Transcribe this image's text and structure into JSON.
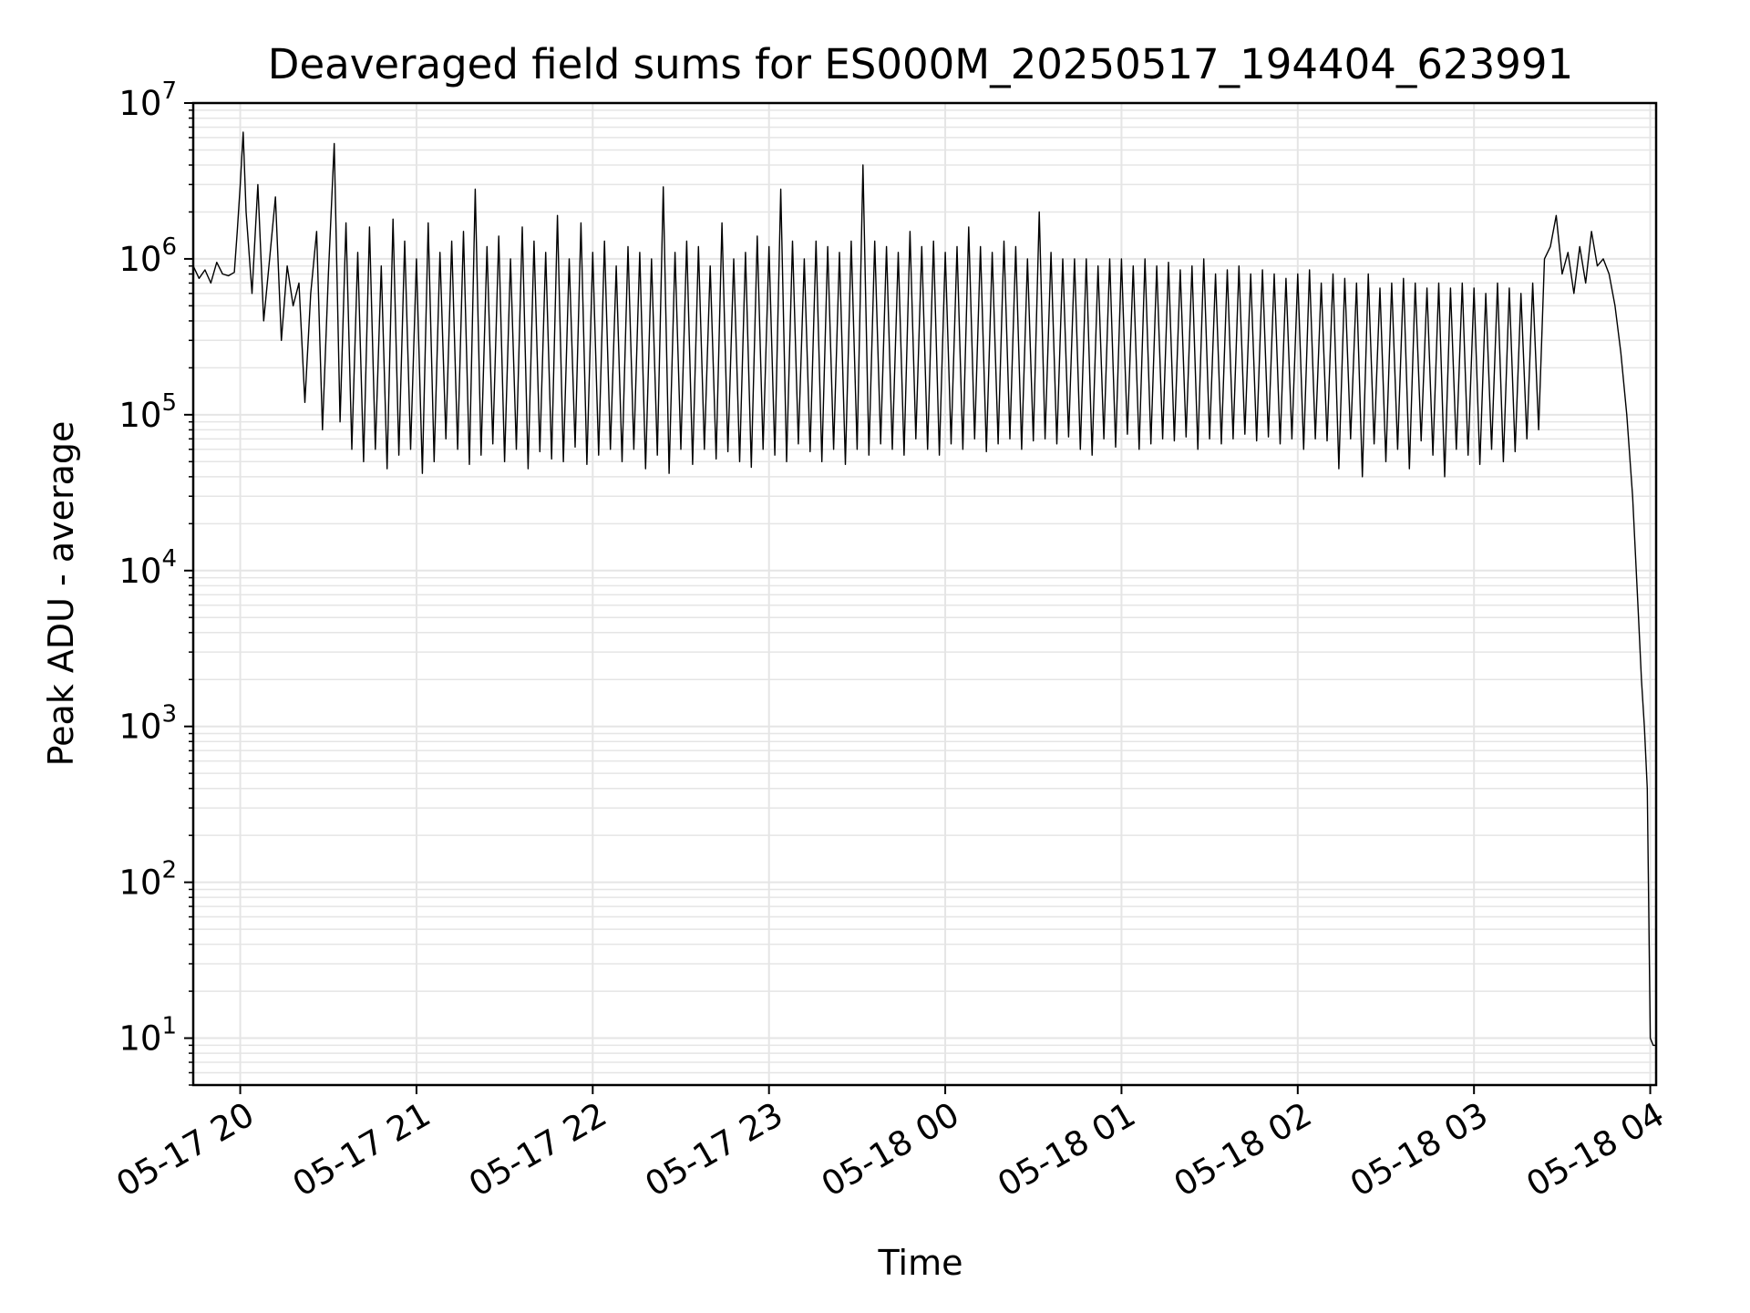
{
  "chart_data": {
    "type": "line",
    "title": "Deaveraged field sums for ES000M_20250517_194404_623991",
    "xlabel": "Time",
    "ylabel": "Peak ADU - average",
    "yscale": "log",
    "ylim": [
      5,
      10000000
    ],
    "xlim": [
      "2025-05-17 19:44",
      "2025-05-18 04:02"
    ],
    "grid": true,
    "line_color": "#000000",
    "grid_color": "#e5e5e5",
    "x_ticks": [
      {
        "value": "2025-05-17 20:00",
        "label": "05-17 20"
      },
      {
        "value": "2025-05-17 21:00",
        "label": "05-17 21"
      },
      {
        "value": "2025-05-17 22:00",
        "label": "05-17 22"
      },
      {
        "value": "2025-05-17 23:00",
        "label": "05-17 23"
      },
      {
        "value": "2025-05-18 00:00",
        "label": "05-18 00"
      },
      {
        "value": "2025-05-18 01:00",
        "label": "05-18 01"
      },
      {
        "value": "2025-05-18 02:00",
        "label": "05-18 02"
      },
      {
        "value": "2025-05-18 03:00",
        "label": "05-18 03"
      },
      {
        "value": "2025-05-18 04:00",
        "label": "05-18 04"
      }
    ],
    "y_ticks": [
      {
        "value": 10,
        "base": "10",
        "exp": "1"
      },
      {
        "value": 100,
        "base": "10",
        "exp": "2"
      },
      {
        "value": 1000,
        "base": "10",
        "exp": "3"
      },
      {
        "value": 10000,
        "base": "10",
        "exp": "4"
      },
      {
        "value": 100000,
        "base": "10",
        "exp": "5"
      },
      {
        "value": 1000000,
        "base": "10",
        "exp": "6"
      },
      {
        "value": 10000000,
        "base": "10",
        "exp": "7"
      }
    ],
    "series": [
      {
        "x": [
          "2025-05-17 19:44",
          "2025-05-17 19:46",
          "2025-05-17 19:48",
          "2025-05-17 19:50",
          "2025-05-17 19:52",
          "2025-05-17 19:54",
          "2025-05-17 19:56",
          "2025-05-17 19:58",
          "2025-05-17 19:59",
          "2025-05-17 20:00",
          "2025-05-17 20:01",
          "2025-05-17 20:02",
          "2025-05-17 20:04",
          "2025-05-17 20:06",
          "2025-05-17 20:08",
          "2025-05-17 20:10",
          "2025-05-17 20:12",
          "2025-05-17 20:14",
          "2025-05-17 20:16",
          "2025-05-17 20:18",
          "2025-05-17 20:20",
          "2025-05-17 20:22",
          "2025-05-17 20:24",
          "2025-05-17 20:26",
          "2025-05-17 20:28",
          "2025-05-17 20:30",
          "2025-05-17 20:32",
          "2025-05-17 20:34",
          "2025-05-17 20:36",
          "2025-05-17 20:38",
          "2025-05-17 20:40",
          "2025-05-17 20:42",
          "2025-05-17 20:44",
          "2025-05-17 20:46",
          "2025-05-17 20:48",
          "2025-05-17 20:50",
          "2025-05-17 20:52",
          "2025-05-17 20:54",
          "2025-05-17 20:56",
          "2025-05-17 20:58",
          "2025-05-17 21:00",
          "2025-05-17 21:02",
          "2025-05-17 21:04",
          "2025-05-17 21:06",
          "2025-05-17 21:08",
          "2025-05-17 21:10",
          "2025-05-17 21:12",
          "2025-05-17 21:14",
          "2025-05-17 21:16",
          "2025-05-17 21:18",
          "2025-05-17 21:20",
          "2025-05-17 21:22",
          "2025-05-17 21:24",
          "2025-05-17 21:26",
          "2025-05-17 21:28",
          "2025-05-17 21:30",
          "2025-05-17 21:32",
          "2025-05-17 21:34",
          "2025-05-17 21:36",
          "2025-05-17 21:38",
          "2025-05-17 21:40",
          "2025-05-17 21:42",
          "2025-05-17 21:44",
          "2025-05-17 21:46",
          "2025-05-17 21:48",
          "2025-05-17 21:50",
          "2025-05-17 21:52",
          "2025-05-17 21:54",
          "2025-05-17 21:56",
          "2025-05-17 21:58",
          "2025-05-17 22:00",
          "2025-05-17 22:02",
          "2025-05-17 22:04",
          "2025-05-17 22:06",
          "2025-05-17 22:08",
          "2025-05-17 22:10",
          "2025-05-17 22:12",
          "2025-05-17 22:14",
          "2025-05-17 22:16",
          "2025-05-17 22:18",
          "2025-05-17 22:20",
          "2025-05-17 22:22",
          "2025-05-17 22:24",
          "2025-05-17 22:26",
          "2025-05-17 22:28",
          "2025-05-17 22:30",
          "2025-05-17 22:32",
          "2025-05-17 22:34",
          "2025-05-17 22:36",
          "2025-05-17 22:38",
          "2025-05-17 22:40",
          "2025-05-17 22:42",
          "2025-05-17 22:44",
          "2025-05-17 22:46",
          "2025-05-17 22:48",
          "2025-05-17 22:50",
          "2025-05-17 22:52",
          "2025-05-17 22:54",
          "2025-05-17 22:56",
          "2025-05-17 22:58",
          "2025-05-17 23:00",
          "2025-05-17 23:02",
          "2025-05-17 23:04",
          "2025-05-17 23:06",
          "2025-05-17 23:08",
          "2025-05-17 23:10",
          "2025-05-17 23:12",
          "2025-05-17 23:14",
          "2025-05-17 23:16",
          "2025-05-17 23:18",
          "2025-05-17 23:20",
          "2025-05-17 23:22",
          "2025-05-17 23:24",
          "2025-05-17 23:26",
          "2025-05-17 23:28",
          "2025-05-17 23:30",
          "2025-05-17 23:32",
          "2025-05-17 23:34",
          "2025-05-17 23:36",
          "2025-05-17 23:38",
          "2025-05-17 23:40",
          "2025-05-17 23:42",
          "2025-05-17 23:44",
          "2025-05-17 23:46",
          "2025-05-17 23:48",
          "2025-05-17 23:50",
          "2025-05-17 23:52",
          "2025-05-17 23:54",
          "2025-05-17 23:56",
          "2025-05-17 23:58",
          "2025-05-18 00:00",
          "2025-05-18 00:02",
          "2025-05-18 00:04",
          "2025-05-18 00:06",
          "2025-05-18 00:08",
          "2025-05-18 00:10",
          "2025-05-18 00:12",
          "2025-05-18 00:14",
          "2025-05-18 00:16",
          "2025-05-18 00:18",
          "2025-05-18 00:20",
          "2025-05-18 00:22",
          "2025-05-18 00:24",
          "2025-05-18 00:26",
          "2025-05-18 00:28",
          "2025-05-18 00:30",
          "2025-05-18 00:32",
          "2025-05-18 00:34",
          "2025-05-18 00:36",
          "2025-05-18 00:38",
          "2025-05-18 00:40",
          "2025-05-18 00:42",
          "2025-05-18 00:44",
          "2025-05-18 00:46",
          "2025-05-18 00:48",
          "2025-05-18 00:50",
          "2025-05-18 00:52",
          "2025-05-18 00:54",
          "2025-05-18 00:56",
          "2025-05-18 00:58",
          "2025-05-18 01:00",
          "2025-05-18 01:02",
          "2025-05-18 01:04",
          "2025-05-18 01:06",
          "2025-05-18 01:08",
          "2025-05-18 01:10",
          "2025-05-18 01:12",
          "2025-05-18 01:14",
          "2025-05-18 01:16",
          "2025-05-18 01:18",
          "2025-05-18 01:20",
          "2025-05-18 01:22",
          "2025-05-18 01:24",
          "2025-05-18 01:26",
          "2025-05-18 01:28",
          "2025-05-18 01:30",
          "2025-05-18 01:32",
          "2025-05-18 01:34",
          "2025-05-18 01:36",
          "2025-05-18 01:38",
          "2025-05-18 01:40",
          "2025-05-18 01:42",
          "2025-05-18 01:44",
          "2025-05-18 01:46",
          "2025-05-18 01:48",
          "2025-05-18 01:50",
          "2025-05-18 01:52",
          "2025-05-18 01:54",
          "2025-05-18 01:56",
          "2025-05-18 01:58",
          "2025-05-18 02:00",
          "2025-05-18 02:02",
          "2025-05-18 02:04",
          "2025-05-18 02:06",
          "2025-05-18 02:08",
          "2025-05-18 02:10",
          "2025-05-18 02:12",
          "2025-05-18 02:14",
          "2025-05-18 02:16",
          "2025-05-18 02:18",
          "2025-05-18 02:20",
          "2025-05-18 02:22",
          "2025-05-18 02:24",
          "2025-05-18 02:26",
          "2025-05-18 02:28",
          "2025-05-18 02:30",
          "2025-05-18 02:32",
          "2025-05-18 02:34",
          "2025-05-18 02:36",
          "2025-05-18 02:38",
          "2025-05-18 02:40",
          "2025-05-18 02:42",
          "2025-05-18 02:44",
          "2025-05-18 02:46",
          "2025-05-18 02:48",
          "2025-05-18 02:50",
          "2025-05-18 02:52",
          "2025-05-18 02:54",
          "2025-05-18 02:56",
          "2025-05-18 02:58",
          "2025-05-18 03:00",
          "2025-05-18 03:02",
          "2025-05-18 03:04",
          "2025-05-18 03:06",
          "2025-05-18 03:08",
          "2025-05-18 03:10",
          "2025-05-18 03:12",
          "2025-05-18 03:14",
          "2025-05-18 03:16",
          "2025-05-18 03:18",
          "2025-05-18 03:20",
          "2025-05-18 03:22",
          "2025-05-18 03:24",
          "2025-05-18 03:26",
          "2025-05-18 03:28",
          "2025-05-18 03:30",
          "2025-05-18 03:32",
          "2025-05-18 03:34",
          "2025-05-18 03:36",
          "2025-05-18 03:38",
          "2025-05-18 03:40",
          "2025-05-18 03:42",
          "2025-05-18 03:44",
          "2025-05-18 03:46",
          "2025-05-18 03:48",
          "2025-05-18 03:50",
          "2025-05-18 03:52",
          "2025-05-18 03:54",
          "2025-05-18 03:56",
          "2025-05-18 03:57",
          "2025-05-18 03:58",
          "2025-05-18 03:59",
          "2025-05-18 04:00",
          "2025-05-18 04:01",
          "2025-05-18 04:02"
        ],
        "y": [
          900000,
          750000,
          850000,
          700000,
          950000,
          800000,
          780000,
          820000,
          1500000,
          3000000,
          6500000,
          2000000,
          600000,
          3000000,
          400000,
          1000000,
          2500000,
          300000,
          900000,
          500000,
          700000,
          120000,
          600000,
          1500000,
          80000,
          800000,
          5500000,
          90000,
          1700000,
          60000,
          1100000,
          50000,
          1600000,
          60000,
          900000,
          45000,
          1800000,
          55000,
          1300000,
          60000,
          1000000,
          42000,
          1700000,
          50000,
          1100000,
          70000,
          1300000,
          60000,
          1500000,
          48000,
          2800000,
          55000,
          1200000,
          65000,
          1400000,
          50000,
          1000000,
          60000,
          1600000,
          45000,
          1300000,
          58000,
          1100000,
          52000,
          1900000,
          50000,
          1000000,
          62000,
          1700000,
          48000,
          1100000,
          55000,
          1300000,
          60000,
          900000,
          50000,
          1200000,
          60000,
          1100000,
          45000,
          1000000,
          55000,
          2900000,
          42000,
          1100000,
          60000,
          1300000,
          48000,
          1200000,
          60000,
          900000,
          52000,
          1700000,
          58000,
          1000000,
          50000,
          1100000,
          46000,
          1400000,
          60000,
          1200000,
          55000,
          2800000,
          50000,
          1300000,
          65000,
          1000000,
          58000,
          1300000,
          50000,
          1200000,
          60000,
          1100000,
          48000,
          1300000,
          60000,
          4000000,
          55000,
          1300000,
          65000,
          1200000,
          60000,
          1100000,
          55000,
          1500000,
          70000,
          1200000,
          60000,
          1300000,
          55000,
          1100000,
          65000,
          1200000,
          60000,
          1600000,
          70000,
          1200000,
          58000,
          1100000,
          65000,
          1300000,
          70000,
          1200000,
          60000,
          1000000,
          68000,
          2000000,
          70000,
          1100000,
          65000,
          1000000,
          72000,
          1000000,
          60000,
          1000000,
          55000,
          900000,
          70000,
          1000000,
          62000,
          1000000,
          75000,
          900000,
          60000,
          1000000,
          65000,
          900000,
          70000,
          950000,
          68000,
          850000,
          72000,
          900000,
          60000,
          1000000,
          70000,
          800000,
          65000,
          850000,
          70000,
          900000,
          75000,
          800000,
          68000,
          850000,
          72000,
          800000,
          65000,
          750000,
          70000,
          800000,
          60000,
          850000,
          70000,
          700000,
          68000,
          800000,
          45000,
          750000,
          70000,
          700000,
          40000,
          800000,
          65000,
          650000,
          50000,
          700000,
          60000,
          750000,
          45000,
          700000,
          68000,
          650000,
          55000,
          700000,
          40000,
          650000,
          60000,
          700000,
          55000,
          650000,
          48000,
          600000,
          60000,
          700000,
          50000,
          650000,
          58000,
          600000,
          70000,
          700000,
          80000,
          1000000,
          1200000,
          1900000,
          800000,
          1100000,
          600000,
          1200000,
          700000,
          1500000,
          900000,
          1000000,
          800000,
          500000,
          250000,
          100000,
          30000,
          5000,
          2000,
          1000,
          400,
          10,
          9,
          9
        ]
      }
    ]
  }
}
